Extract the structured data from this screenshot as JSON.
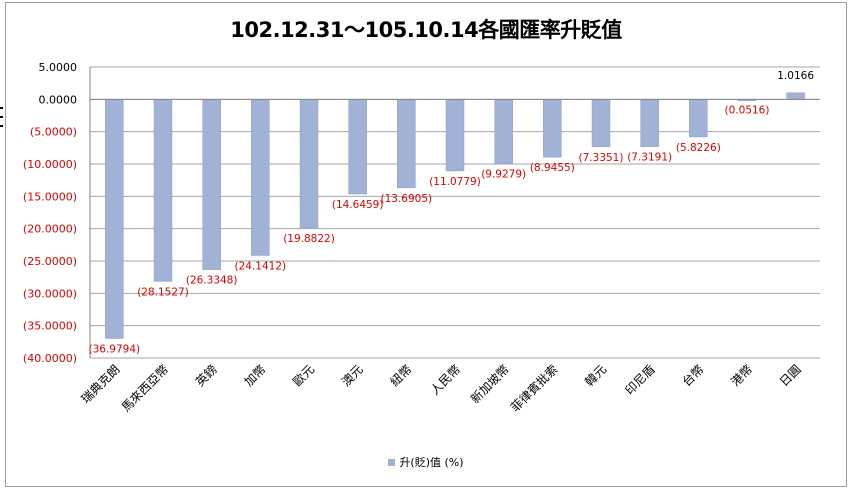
{
  "chart_data": {
    "type": "bar",
    "title": "102.12.31～105.10.14各國匯率升貶值",
    "xlabel": "",
    "ylabel": "",
    "ylim": [
      -40,
      5
    ],
    "yticks": [
      "5.0000",
      "0.0000",
      "(5.0000)",
      "(10.0000)",
      "(15.0000)",
      "(20.0000)",
      "(25.0000)",
      "(30.0000)",
      "(35.0000)",
      "(40.0000)"
    ],
    "ytick_values": [
      5,
      0,
      -5,
      -10,
      -15,
      -20,
      -25,
      -30,
      -35,
      -40
    ],
    "grid": true,
    "legend_position": "bottom",
    "categories": [
      "瑞典克朗",
      "馬來西亞幣",
      "英鎊",
      "加幣",
      "歐元",
      "澳元",
      "紐幣",
      "人民幣",
      "新加坡幣",
      "菲律賓批索",
      "韓元",
      "印尼盾",
      "台幣",
      "港幣",
      "日圓"
    ],
    "series": [
      {
        "name": "升(貶)值 (%)",
        "values": [
          -36.9794,
          -28.1527,
          -26.3348,
          -24.1412,
          -19.8822,
          -14.6459,
          -13.6905,
          -11.0779,
          -9.9279,
          -8.9455,
          -7.3351,
          -7.3191,
          -5.8226,
          -0.0516,
          1.0166
        ],
        "labels": [
          "(36.9794)",
          "(28.1527)",
          "(26.3348)",
          "(24.1412)",
          "(19.8822)",
          "(14.6459)",
          "(13.6905)",
          "(11.0779)",
          "(9.9279)",
          "(8.9455)",
          "(7.3351)",
          "(7.3191)",
          "(5.8226)",
          "(0.0516)",
          "1.0166"
        ]
      }
    ],
    "colors": {
      "bar": "#a2b1d6",
      "negative_label": "#e00000",
      "positive_label": "#000000",
      "tick_negative": "#e00000",
      "grid": "#a6a6a6"
    }
  },
  "legend": {
    "label": "升(貶)值 (%)"
  }
}
